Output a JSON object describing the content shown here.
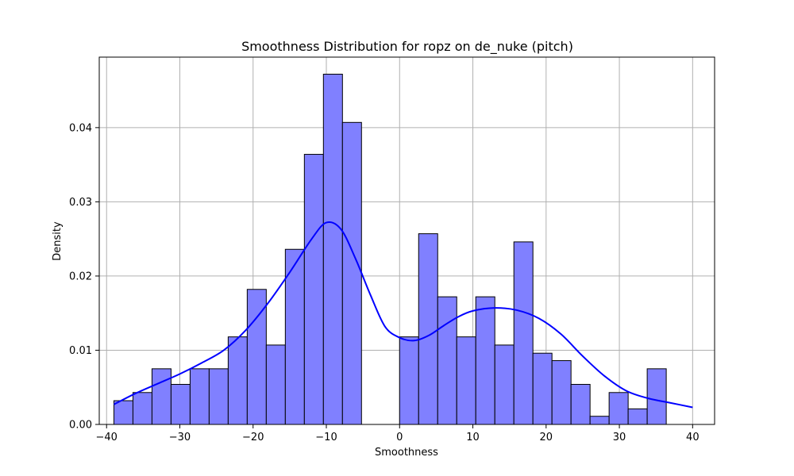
{
  "chart_data": {
    "type": "bar",
    "title": "Smoothness Distribution for ropz on de_nuke (pitch)",
    "xlabel": "Smoothness",
    "ylabel": "Density",
    "xlim": [
      -41.0,
      43.0
    ],
    "ylim": [
      0.0,
      0.0495
    ],
    "xticks": [
      -40,
      -30,
      -20,
      -10,
      0,
      10,
      20,
      30,
      40
    ],
    "xtick_labels": [
      "−40",
      "−30",
      "−20",
      "−10",
      "0",
      "10",
      "20",
      "30",
      "40"
    ],
    "yticks": [
      0.0,
      0.01,
      0.02,
      0.03,
      0.04
    ],
    "ytick_labels": [
      "0.00",
      "0.01",
      "0.02",
      "0.03",
      "0.04"
    ],
    "grid": true,
    "bar_color": "#8080ff",
    "kde_color": "#0000ff",
    "bin_start": -39.0,
    "bin_width": 2.6,
    "bin_densities": [
      0.0032,
      0.0043,
      0.0075,
      0.0054,
      0.0075,
      0.0075,
      0.0118,
      0.0182,
      0.0107,
      0.0236,
      0.0364,
      0.0472,
      0.0407,
      0.0,
      0.0,
      0.0118,
      0.0257,
      0.0172,
      0.0118,
      0.0172,
      0.0107,
      0.0246,
      0.0096,
      0.0086,
      0.0054,
      0.0011,
      0.0043,
      0.0021,
      0.0075
    ],
    "kde": {
      "x": [
        -39,
        -36,
        -33,
        -30,
        -27,
        -24,
        -21,
        -18,
        -15,
        -12,
        -10,
        -8,
        -6,
        -4,
        -2,
        0,
        2,
        4,
        6,
        8,
        10,
        13,
        16,
        19,
        22,
        25,
        28,
        31,
        34,
        37,
        40
      ],
      "y": [
        0.0027,
        0.0042,
        0.0055,
        0.0068,
        0.0083,
        0.01,
        0.0127,
        0.0163,
        0.0205,
        0.025,
        0.0272,
        0.0263,
        0.0223,
        0.0175,
        0.0132,
        0.0117,
        0.0113,
        0.012,
        0.0133,
        0.0145,
        0.0153,
        0.0157,
        0.0154,
        0.0143,
        0.0122,
        0.0092,
        0.0065,
        0.0045,
        0.0035,
        0.0029,
        0.0023
      ]
    }
  }
}
